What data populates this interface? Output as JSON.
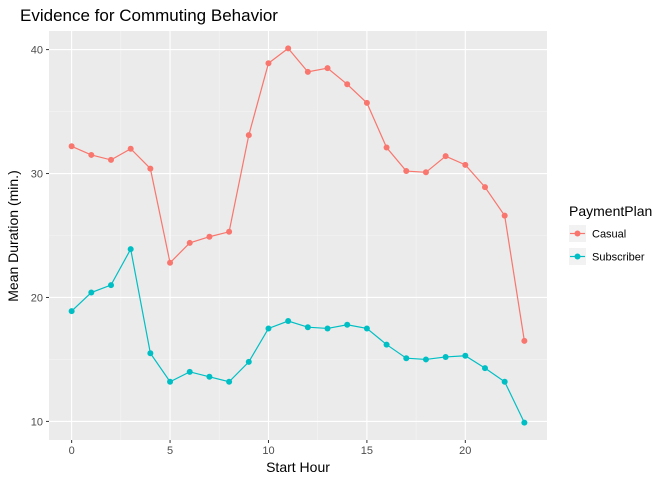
{
  "chart_data": {
    "type": "line",
    "title": "Evidence for Commuting Behavior",
    "xlabel": "Start Hour",
    "ylabel": "Mean Duration (min.)",
    "xlim": [
      -1.15,
      24.15
    ],
    "ylim": [
      8.5,
      41.5
    ],
    "x_ticks": [
      0,
      5,
      10,
      15,
      20
    ],
    "y_ticks": [
      10,
      20,
      30,
      40
    ],
    "grid": true,
    "legend": {
      "title": "PaymentPlan",
      "position": "right"
    },
    "x": [
      0,
      1,
      2,
      3,
      4,
      5,
      6,
      7,
      8,
      9,
      10,
      11,
      12,
      13,
      14,
      15,
      16,
      17,
      18,
      19,
      20,
      21,
      22,
      23
    ],
    "series": [
      {
        "name": "Casual",
        "color": "#F8766D",
        "values": [
          32.2,
          31.5,
          31.1,
          32.0,
          30.4,
          22.8,
          24.4,
          24.9,
          25.3,
          33.1,
          38.9,
          40.1,
          38.2,
          38.5,
          37.2,
          35.7,
          32.1,
          30.2,
          30.1,
          31.4,
          30.7,
          28.9,
          26.6,
          16.5
        ]
      },
      {
        "name": "Subscriber",
        "color": "#00BFC4",
        "values": [
          18.9,
          20.4,
          21.0,
          23.9,
          15.5,
          13.2,
          14.0,
          13.6,
          13.2,
          14.8,
          17.5,
          18.1,
          17.6,
          17.5,
          17.8,
          17.5,
          16.2,
          15.1,
          15.0,
          15.2,
          15.3,
          14.3,
          13.2,
          9.9
        ]
      }
    ]
  }
}
